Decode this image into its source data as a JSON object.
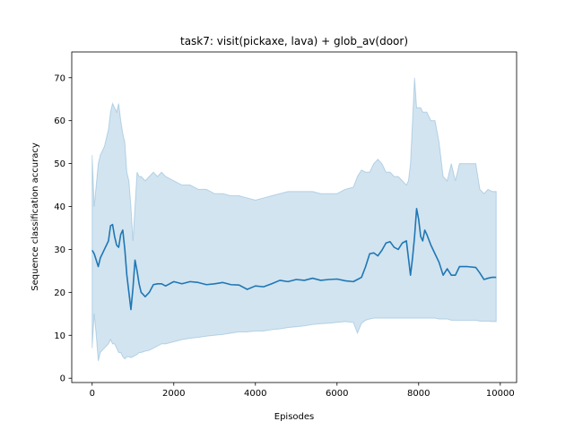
{
  "chart_data": {
    "type": "line",
    "title": "task7: visit(pickaxe, lava) + glob_av(door)",
    "xlabel": "Episodes",
    "ylabel": "Sequence classification accuracy",
    "xlim": [
      -500,
      10400
    ],
    "ylim": [
      -1,
      76
    ],
    "xticks": [
      0,
      2000,
      4000,
      6000,
      8000,
      10000
    ],
    "yticks": [
      0,
      10,
      20,
      30,
      40,
      50,
      60,
      70
    ],
    "grid": false,
    "legend": "none",
    "colors": {
      "line": "#1f77b4",
      "band": "#1f77b4"
    },
    "series": [
      {
        "x": [
          0,
          50,
          100,
          150,
          200,
          300,
          400,
          450,
          500,
          550,
          600,
          650,
          700,
          750,
          800,
          850,
          900,
          950,
          1000,
          1050,
          1100,
          1150,
          1200,
          1300,
          1400,
          1500,
          1600,
          1700,
          1800,
          2000,
          2200,
          2400,
          2600,
          2800,
          3000,
          3200,
          3400,
          3600,
          3800,
          4000,
          4200,
          4400,
          4600,
          4800,
          5000,
          5200,
          5400,
          5600,
          5800,
          6000,
          6200,
          6400,
          6500,
          6600,
          6700,
          6800,
          6900,
          7000,
          7100,
          7200,
          7300,
          7400,
          7500,
          7600,
          7700,
          7750,
          7800,
          7850,
          7900,
          7950,
          8000,
          8050,
          8100,
          8150,
          8200,
          8300,
          8400,
          8500,
          8600,
          8700,
          8800,
          8900,
          9000,
          9200,
          9400,
          9500,
          9600,
          9700,
          9800,
          9900
        ],
        "mean": [
          29.8,
          29,
          27.5,
          26,
          28,
          30,
          32,
          35.5,
          35.8,
          33,
          31,
          30.5,
          33.5,
          34.5,
          30,
          24,
          20,
          16,
          21,
          27.5,
          25,
          22,
          20,
          19,
          20,
          21.8,
          22,
          22,
          21.5,
          22.5,
          22,
          22.5,
          22.3,
          21.8,
          22,
          22.3,
          21.8,
          21.7,
          20.7,
          21.5,
          21.3,
          22,
          22.8,
          22.5,
          23,
          22.8,
          23.3,
          22.8,
          23,
          23.1,
          22.7,
          22.5,
          23,
          23.5,
          26,
          29,
          29.2,
          28.5,
          29.8,
          31.5,
          31.8,
          30.5,
          30,
          31.5,
          32,
          28,
          24,
          28,
          33,
          39.5,
          37,
          33,
          32,
          34.5,
          33.5,
          31,
          29,
          27,
          24,
          25.5,
          24,
          24,
          26,
          26,
          25.8,
          24.5,
          23,
          23.3,
          23.5,
          23.5
        ],
        "upper": [
          52,
          40,
          45,
          50,
          52,
          54,
          58,
          62,
          64,
          63,
          62,
          64,
          60,
          57,
          55,
          48,
          46,
          40,
          32,
          40,
          48,
          47,
          47,
          46,
          47,
          48,
          47,
          48,
          47,
          46,
          45,
          45,
          44,
          44,
          43,
          43,
          42.5,
          42.5,
          42,
          41.5,
          42,
          42.5,
          43,
          43.5,
          43.5,
          43.5,
          43.5,
          43,
          43,
          43,
          44,
          44.5,
          47,
          48.5,
          48,
          48,
          50,
          51,
          50,
          48,
          48,
          47,
          47,
          46,
          45,
          46,
          50,
          60,
          70,
          63,
          63,
          63,
          62,
          62,
          62,
          60,
          60,
          55,
          47,
          46,
          50,
          46,
          50,
          50,
          50,
          44,
          43,
          44,
          43.5,
          43.5
        ],
        "lower": [
          7,
          15,
          10,
          4,
          6,
          7,
          8,
          9,
          8,
          8,
          7,
          6,
          6,
          5,
          4.5,
          5,
          5,
          4.8,
          5,
          5.3,
          5.5,
          6,
          6,
          6.3,
          6.5,
          7,
          7.5,
          8,
          8,
          8.5,
          9,
          9.3,
          9.5,
          9.8,
          10,
          10.2,
          10.5,
          10.8,
          10.8,
          11,
          11,
          11.3,
          11.5,
          11.8,
          12,
          12.2,
          12.5,
          12.7,
          12.8,
          13,
          13.2,
          13,
          10.5,
          12.8,
          13.5,
          13.8,
          14,
          14,
          14,
          14,
          14,
          14,
          14,
          14,
          14,
          14,
          14,
          14,
          14,
          14,
          14,
          14,
          14,
          14,
          14,
          14,
          14,
          13.8,
          13.8,
          13.8,
          13.5,
          13.5,
          13.5,
          13.5,
          13.5,
          13.3,
          13.3,
          13.3,
          13.2,
          13.2
        ]
      }
    ]
  }
}
